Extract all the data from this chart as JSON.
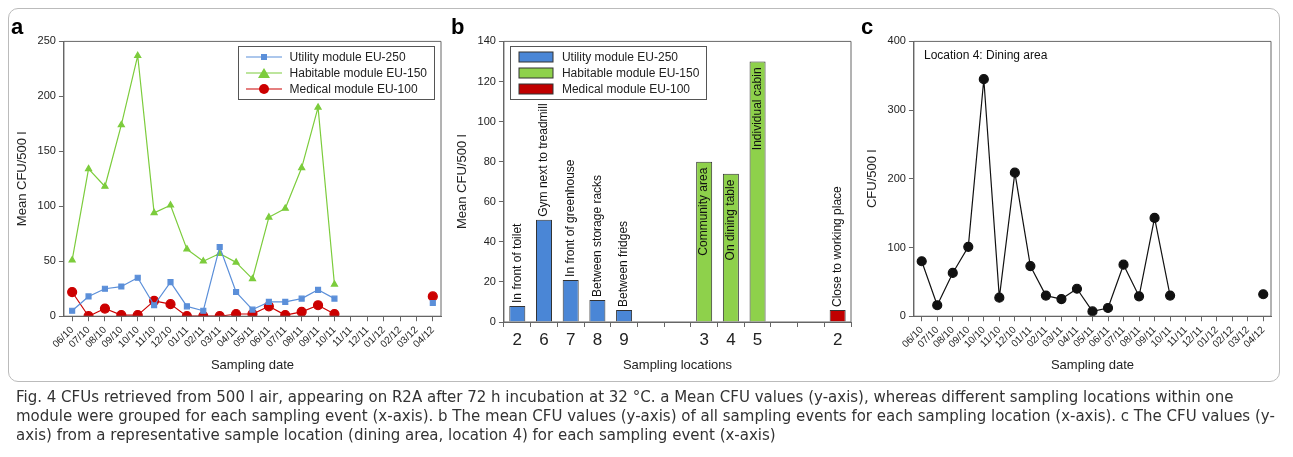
{
  "chart_data": [
    {
      "type": "line",
      "title": "a",
      "xlabel": "Sampling date",
      "ylabel": "Mean CFU/500 l",
      "categories": [
        "06/10",
        "07/10",
        "08/10",
        "09/10",
        "10/10",
        "11/10",
        "12/10",
        "01/11",
        "02/11",
        "03/11",
        "04/11",
        "05/11",
        "06/11",
        "07/11",
        "08/11",
        "09/11",
        "10/11",
        "11/11",
        "12/11",
        "01/12",
        "02/12",
        "03/12",
        "04/12"
      ],
      "series": [
        {
          "name": "Utility module EU-250",
          "color": "#5b8fd9",
          "marker": "square",
          "values": [
            5,
            18,
            25,
            27,
            35,
            10,
            31,
            9,
            5,
            63,
            22,
            6,
            13,
            13,
            16,
            24,
            16,
            null,
            null,
            null,
            null,
            null,
            12
          ]
        },
        {
          "name": "Habitable module EU-150",
          "color": "#7ccc3c",
          "marker": "triangle",
          "values": [
            51,
            134,
            118,
            174,
            237,
            94,
            101,
            61,
            50,
            57,
            49,
            34,
            90,
            98,
            135,
            190,
            29,
            null,
            null,
            null,
            null,
            null,
            null
          ]
        },
        {
          "name": "Medical module EU-100",
          "color": "#cc0000",
          "marker": "circle",
          "values": [
            22,
            0,
            7,
            1,
            1,
            14,
            11,
            0,
            0,
            0,
            2,
            2,
            9,
            1,
            4,
            10,
            2,
            null,
            null,
            null,
            null,
            null,
            18
          ]
        }
      ],
      "ylim": [
        0,
        250
      ],
      "yticks": [
        0,
        50,
        100,
        150,
        200,
        250
      ],
      "grid": false,
      "legend": "top right",
      "annotations": [
        "Fig. 4 CFUs retrieved from 500 l air, appearing on R2A after 72 h incubation at 32 °C. a Mean CFU values (y-axis), whereas different sampling locations within one module were grouped for each sampling event (x-axis). b The mean CFU values (y-axis) of all sampling events for each sampling location (x-axis). c The CFU values (y-axis) from a representative sample location (dining area, location 4) for each sampling event (x-axis)"
      ]
    },
    {
      "type": "bar",
      "title": "b",
      "xlabel": "Sampling locations",
      "ylabel": "Mean CFU/500 l",
      "categories": [
        "2",
        "6",
        "7",
        "8",
        "9",
        null,
        null,
        "3",
        "4",
        "5",
        null,
        null,
        "2"
      ],
      "series": [
        {
          "name": "Utility module EU-250",
          "color": "#4a86d6",
          "values": [
            8,
            51,
            21,
            11,
            6,
            null,
            null,
            null,
            null,
            null,
            null,
            null,
            null
          ]
        },
        {
          "name": "Habitable module EU-150",
          "color": "#8ed14b",
          "values": [
            null,
            null,
            null,
            null,
            null,
            null,
            null,
            80,
            74,
            130,
            null,
            null,
            null
          ]
        },
        {
          "name": "Medical module EU-100",
          "color": "#c00000",
          "values": [
            null,
            null,
            null,
            null,
            null,
            null,
            null,
            null,
            null,
            null,
            null,
            null,
            6
          ]
        }
      ],
      "ylim": [
        0,
        140
      ],
      "yticks": [
        0,
        20,
        40,
        60,
        80,
        100,
        120,
        140
      ],
      "grid": false,
      "legend": "top left",
      "annotations": [
        {
          "text": "In front of toilet",
          "x": "2",
          "y": 8
        },
        {
          "text": "Gym next to treadmill",
          "x": "6",
          "y": 51
        },
        {
          "text": "In front of greenhouse",
          "x": "7",
          "y": 21
        },
        {
          "text": "Between storage racks",
          "x": "8",
          "y": 11
        },
        {
          "text": "Between fridges",
          "x": "9",
          "y": 6
        },
        {
          "text": "Community area",
          "x": "3",
          "y": 80
        },
        {
          "text": "On dining table",
          "x": "4",
          "y": 74
        },
        {
          "text": "Individual cabin",
          "x": "5",
          "y": 130
        },
        "Close to working place"
      ]
    },
    {
      "type": "line",
      "title": "c",
      "xlabel": "Sampling date",
      "ylabel": "CFU/500 l",
      "categories": [
        "06/10",
        "07/10",
        "08/10",
        "09/10",
        "10/10",
        "11/10",
        "12/10",
        "01/11",
        "02/11",
        "03/11",
        "04/11",
        "05/11",
        "06/11",
        "07/11",
        "08/11",
        "09/11",
        "10/11",
        "11/11",
        "12/11",
        "01/12",
        "02/12",
        "03/12",
        "04/12"
      ],
      "series": [
        {
          "color": "#111111",
          "values": [
            80,
            16,
            63,
            101,
            345,
            27,
            209,
            73,
            30,
            25,
            40,
            7,
            12,
            75,
            29,
            143,
            30,
            null,
            null,
            null,
            null,
            null,
            32
          ]
        }
      ],
      "marker": "circle",
      "ylim": [
        0,
        400
      ],
      "yticks": [
        0,
        100,
        200,
        300,
        400
      ],
      "grid": false,
      "legend": false,
      "annotations": [
        "Location 4: Dining area"
      ]
    }
  ]
}
